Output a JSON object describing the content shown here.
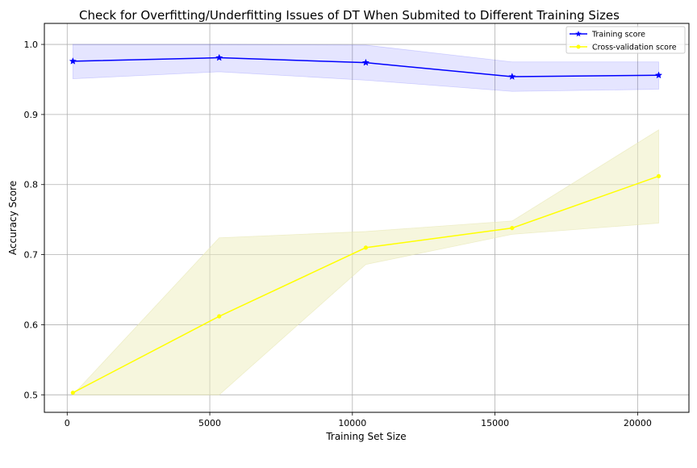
{
  "chart_data": {
    "type": "line",
    "title": "Check for Overfitting/Underfitting Issues of DT When Submited to Different Training Sizes",
    "xlabel": "Training Set Size",
    "ylabel": "Accuracy Score",
    "xlim": [
      -800,
      21800
    ],
    "ylim": [
      0.475,
      1.03
    ],
    "grid": true,
    "legend_position": "upper-right",
    "x_ticks": [
      0,
      5000,
      10000,
      15000,
      20000
    ],
    "y_ticks": [
      0.5,
      0.6,
      0.7,
      0.8,
      0.9,
      1.0
    ],
    "x_tick_labels": [
      "0",
      "5000",
      "10000",
      "15000",
      "20000"
    ],
    "y_tick_labels": [
      "0.5",
      "0.6",
      "0.7",
      "0.8",
      "0.9",
      "1.0"
    ],
    "x": [
      200,
      5330,
      10470,
      15600,
      20740
    ],
    "series": [
      {
        "name": "Training score",
        "color": "#0000ff",
        "band_color": "#0000ff",
        "marker": "star",
        "values": [
          0.976,
          0.981,
          0.974,
          0.954,
          0.956
        ],
        "band_lower": [
          0.951,
          0.961,
          0.949,
          0.933,
          0.936
        ],
        "band_upper": [
          1.0,
          1.0,
          0.999,
          0.975,
          0.975
        ]
      },
      {
        "name": "Cross-validation score",
        "color": "#ffff00",
        "band_color": "#eeeebb",
        "marker": "dot",
        "values": [
          0.503,
          0.612,
          0.71,
          0.738,
          0.812
        ],
        "band_lower": [
          0.5,
          0.5,
          0.686,
          0.729,
          0.745
        ],
        "band_upper": [
          0.5,
          0.724,
          0.733,
          0.748,
          0.878
        ]
      }
    ]
  }
}
